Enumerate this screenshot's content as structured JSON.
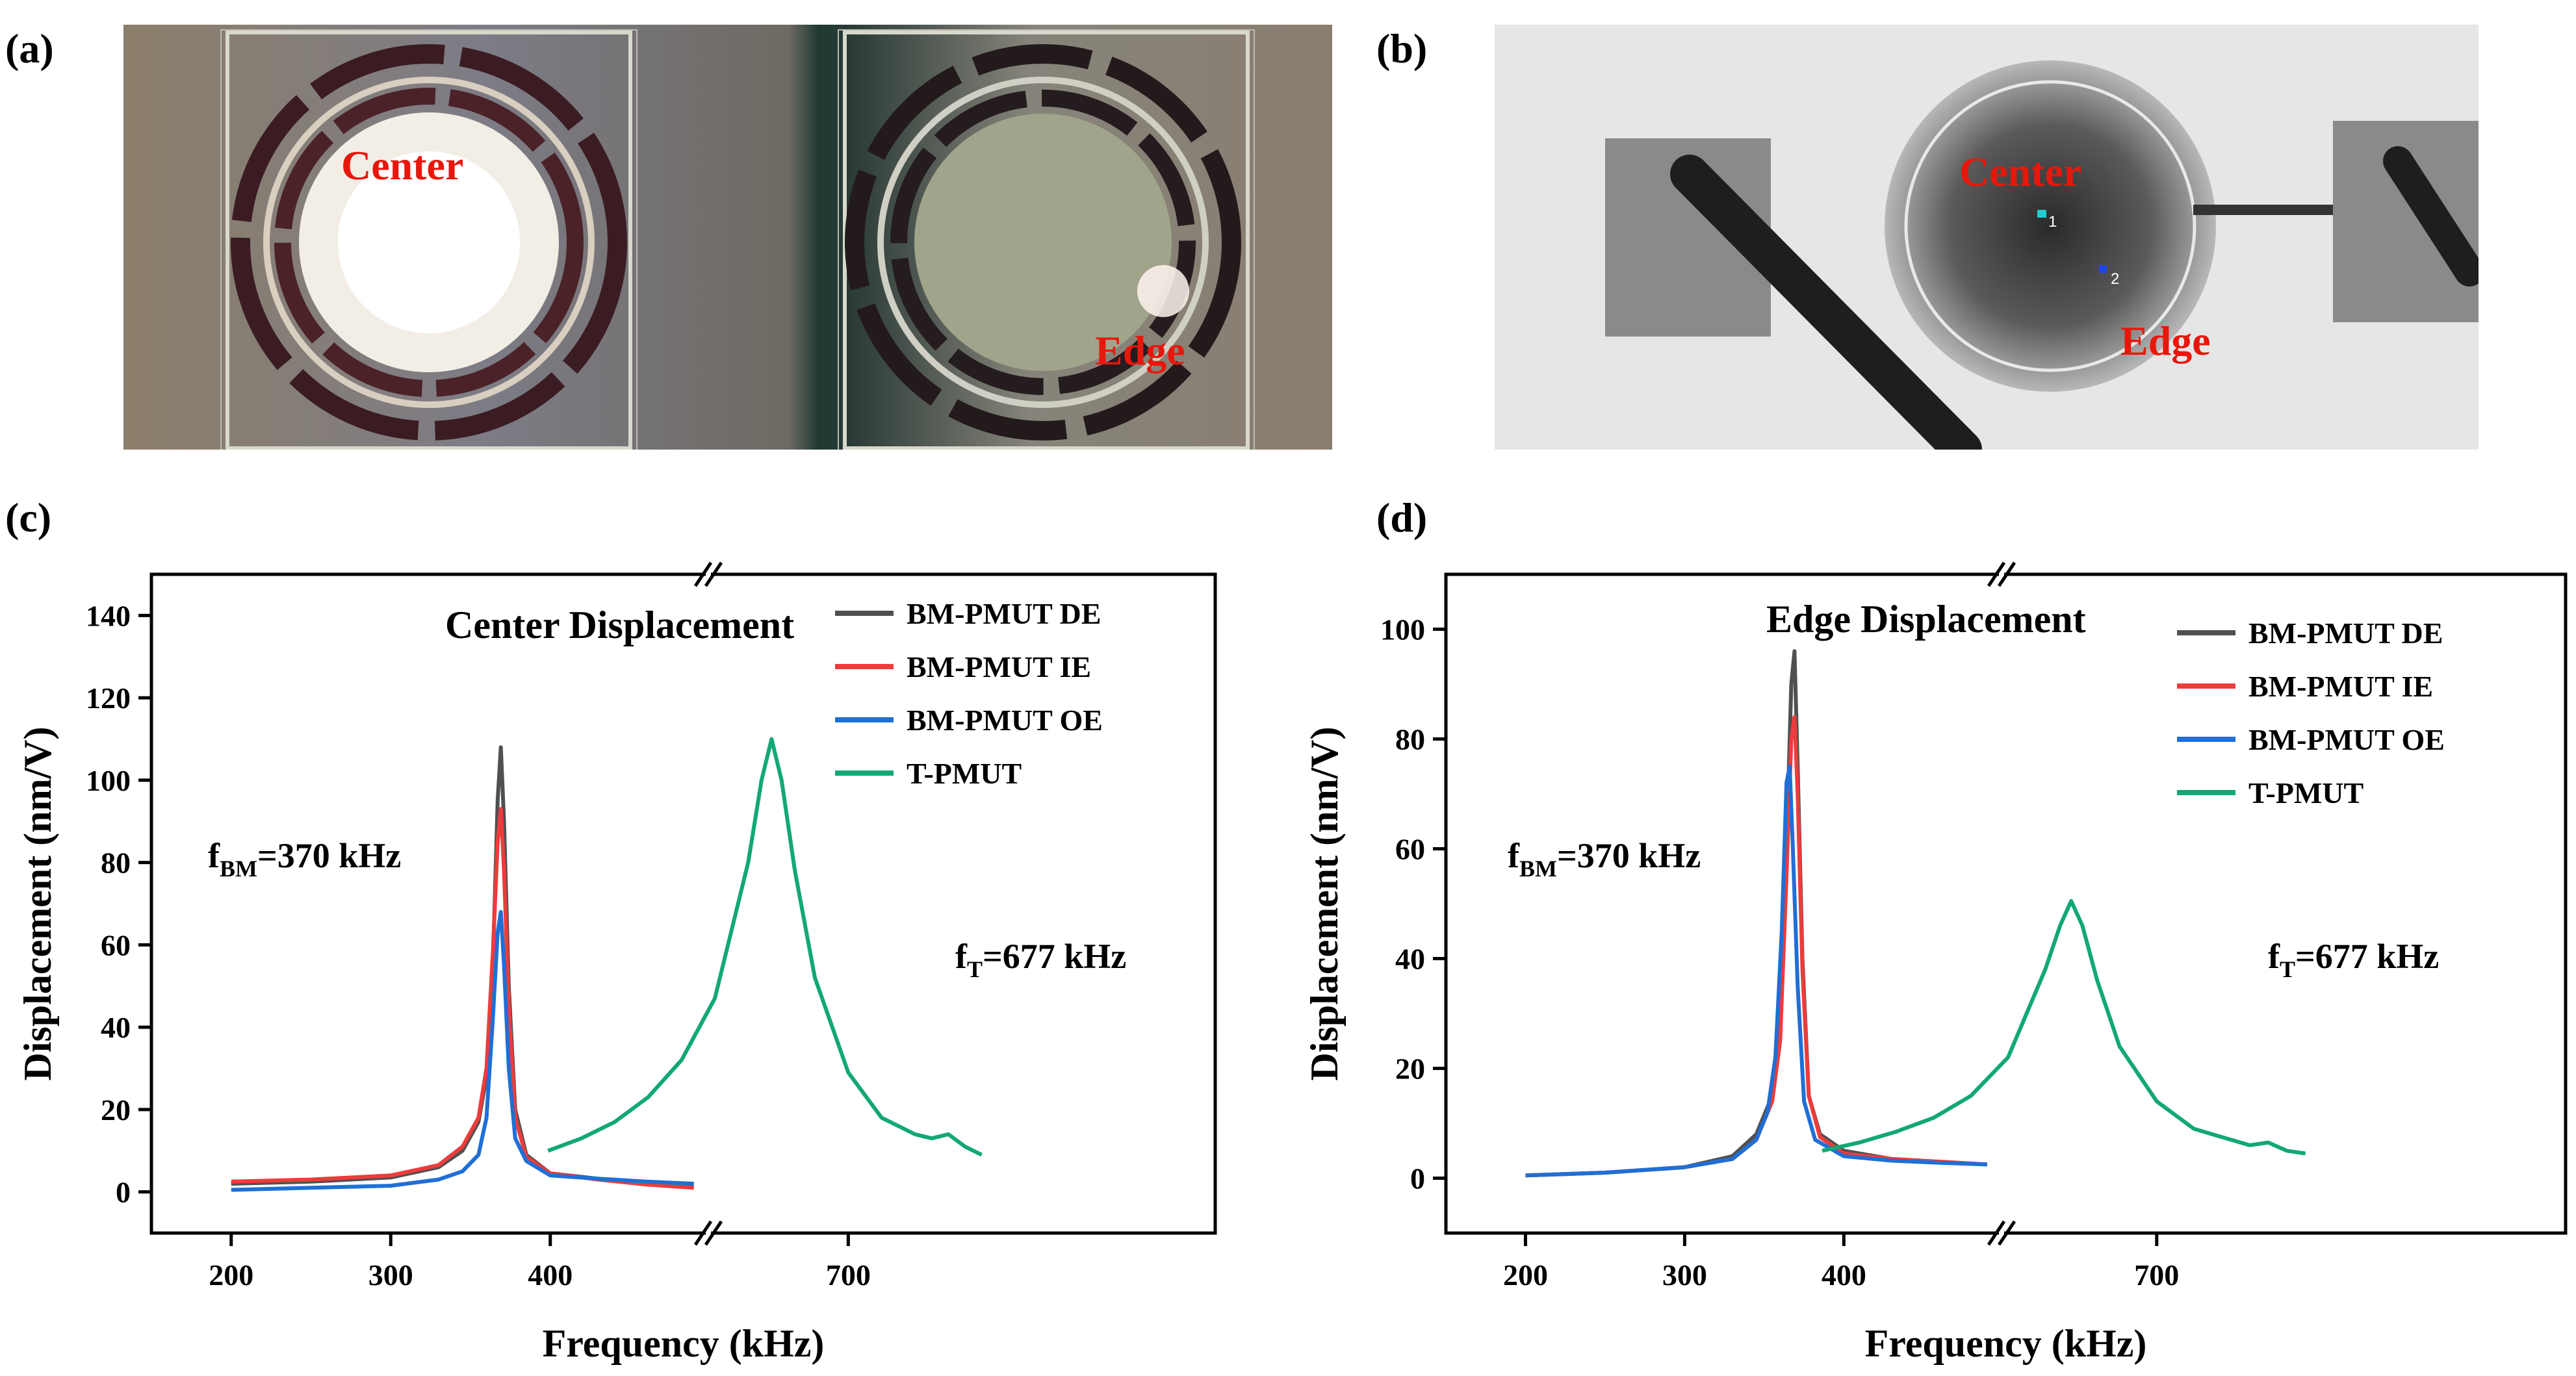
{
  "panels": {
    "a": {
      "label": "(a)",
      "center_label": "Center",
      "edge_label": "Edge"
    },
    "b": {
      "label": "(b)",
      "center_label": "Center",
      "edge_label": "Edge",
      "point1": "1",
      "point2": "2"
    },
    "c": {
      "label": "(c)"
    },
    "d": {
      "label": "(d)"
    }
  },
  "colors": {
    "de": "#505050",
    "ie": "#ee3b3b",
    "oe": "#1f6fd6",
    "t": "#12a874"
  },
  "chart_data": [
    {
      "type": "line",
      "title": "Center Displacement",
      "xlabel": "Frequency (kHz)",
      "ylabel": "Displacement (nm/V)",
      "ylim": [
        -10,
        150
      ],
      "yticks": [
        0,
        20,
        40,
        60,
        80,
        100,
        120,
        140
      ],
      "ytick_labels": [
        "0",
        "20",
        "40",
        "60",
        "80",
        "100",
        "120",
        "140"
      ],
      "x_segments": [
        {
          "range": [
            150,
            495
          ]
        },
        {
          "range": [
            660,
            810
          ]
        }
      ],
      "xticks": [
        200,
        300,
        400,
        700
      ],
      "xtick_labels": [
        "200",
        "300",
        "400",
        "700"
      ],
      "broken_axis": true,
      "annotations": {
        "f_bm": {
          "pre": "f",
          "sub": "BM",
          "post": "=370 kHz"
        },
        "f_t": {
          "pre": "f",
          "sub": "T",
          "post": "=677 kHz"
        }
      },
      "legend": [
        "BM-PMUT DE",
        "BM-PMUT IE",
        "BM-PMUT OE",
        "T-PMUT"
      ],
      "legend_position": "top-right",
      "series": [
        {
          "name": "BM-PMUT DE",
          "color_key": "de",
          "x": [
            200,
            250,
            300,
            330,
            345,
            355,
            360,
            364,
            367,
            369,
            371,
            374,
            378,
            385,
            400,
            430,
            460,
            490
          ],
          "y": [
            2,
            2.5,
            3.5,
            6,
            10,
            17,
            28,
            55,
            95,
            108,
            90,
            50,
            20,
            9,
            4.5,
            3.2,
            2,
            1.2
          ]
        },
        {
          "name": "BM-PMUT IE",
          "color_key": "ie",
          "x": [
            200,
            250,
            300,
            330,
            345,
            355,
            360,
            364,
            367,
            369,
            371,
            374,
            378,
            385,
            400,
            430,
            460,
            490
          ],
          "y": [
            2.5,
            3,
            4,
            6.5,
            11,
            18,
            30,
            58,
            85,
            93,
            78,
            45,
            18,
            8.5,
            4.5,
            3,
            1.8,
            1
          ]
        },
        {
          "name": "BM-PMUT OE",
          "color_key": "oe",
          "x": [
            200,
            250,
            300,
            330,
            345,
            355,
            360,
            364,
            367,
            369,
            371,
            374,
            378,
            385,
            400,
            430,
            460,
            490
          ],
          "y": [
            0.5,
            1,
            1.5,
            3,
            5,
            9,
            18,
            42,
            63,
            68,
            55,
            30,
            13,
            7.5,
            4,
            3.2,
            2.5,
            2
          ]
        },
        {
          "name": "T-PMUT",
          "color_key": "t",
          "x": [
            610,
            620,
            630,
            640,
            650,
            660,
            670,
            674,
            677,
            680,
            684,
            690,
            700,
            710,
            720,
            725,
            730,
            735,
            740
          ],
          "y": [
            10,
            13,
            17,
            23,
            32,
            47,
            80,
            100,
            110,
            100,
            78,
            52,
            29,
            18,
            14,
            13,
            14,
            11,
            9
          ],
          "x_axis": "secondary"
        }
      ]
    },
    {
      "type": "line",
      "title": "Edge Displacement",
      "xlabel": "Frequency (kHz)",
      "ylabel": "Displacement (nm/V)",
      "ylim": [
        -10,
        110
      ],
      "yticks": [
        0,
        20,
        40,
        60,
        80,
        100
      ],
      "ytick_labels": [
        "0",
        "20",
        "40",
        "60",
        "80",
        "100"
      ],
      "x_segments": [
        {
          "range": [
            150,
            495
          ]
        },
        {
          "range": [
            660,
            810
          ]
        }
      ],
      "xticks": [
        200,
        300,
        400,
        700
      ],
      "xtick_labels": [
        "200",
        "300",
        "400",
        "700"
      ],
      "broken_axis": true,
      "annotations": {
        "f_bm": {
          "pre": "f",
          "sub": "BM",
          "post": "=370 kHz"
        },
        "f_t": {
          "pre": "f",
          "sub": "T",
          "post": "=677 kHz"
        }
      },
      "legend": [
        "BM-PMUT DE",
        "BM-PMUT IE",
        "BM-PMUT OE",
        "T-PMUT"
      ],
      "legend_position": "top-right",
      "series": [
        {
          "name": "BM-PMUT DE",
          "color_key": "de",
          "x": [
            200,
            250,
            300,
            330,
            345,
            355,
            360,
            364,
            367,
            369,
            371,
            374,
            378,
            385,
            400,
            430,
            460,
            490
          ],
          "y": [
            0.5,
            1,
            2,
            4,
            8,
            15,
            28,
            60,
            90,
            96,
            75,
            40,
            15,
            8,
            5,
            3.5,
            3,
            2.5
          ]
        },
        {
          "name": "BM-PMUT IE",
          "color_key": "ie",
          "x": [
            200,
            250,
            300,
            330,
            345,
            355,
            360,
            364,
            367,
            369,
            371,
            374,
            378,
            385,
            400,
            430,
            460,
            490
          ],
          "y": [
            0.5,
            1,
            2,
            3.5,
            7,
            14,
            25,
            55,
            80,
            84,
            70,
            38,
            15,
            7.5,
            4.5,
            3.5,
            3,
            2.5
          ]
        },
        {
          "name": "BM-PMUT OE",
          "color_key": "oe",
          "x": [
            200,
            250,
            300,
            330,
            345,
            352,
            357,
            361,
            364,
            366,
            368,
            371,
            375,
            382,
            400,
            430,
            460,
            490
          ],
          "y": [
            0.5,
            1,
            2,
            3.5,
            7,
            12,
            22,
            45,
            72,
            75,
            60,
            35,
            14,
            7,
            4,
            3.2,
            2.8,
            2.5
          ]
        },
        {
          "name": "T-PMUT",
          "color_key": "t",
          "x": [
            610,
            620,
            630,
            640,
            650,
            660,
            670,
            674,
            677,
            680,
            684,
            690,
            700,
            710,
            720,
            725,
            730,
            735,
            740
          ],
          "y": [
            5,
            6.5,
            8.5,
            11,
            15,
            22,
            38,
            46,
            50.5,
            46,
            36,
            24,
            14,
            9,
            7,
            6,
            6.5,
            5,
            4.5
          ],
          "x_axis": "secondary"
        }
      ]
    }
  ]
}
